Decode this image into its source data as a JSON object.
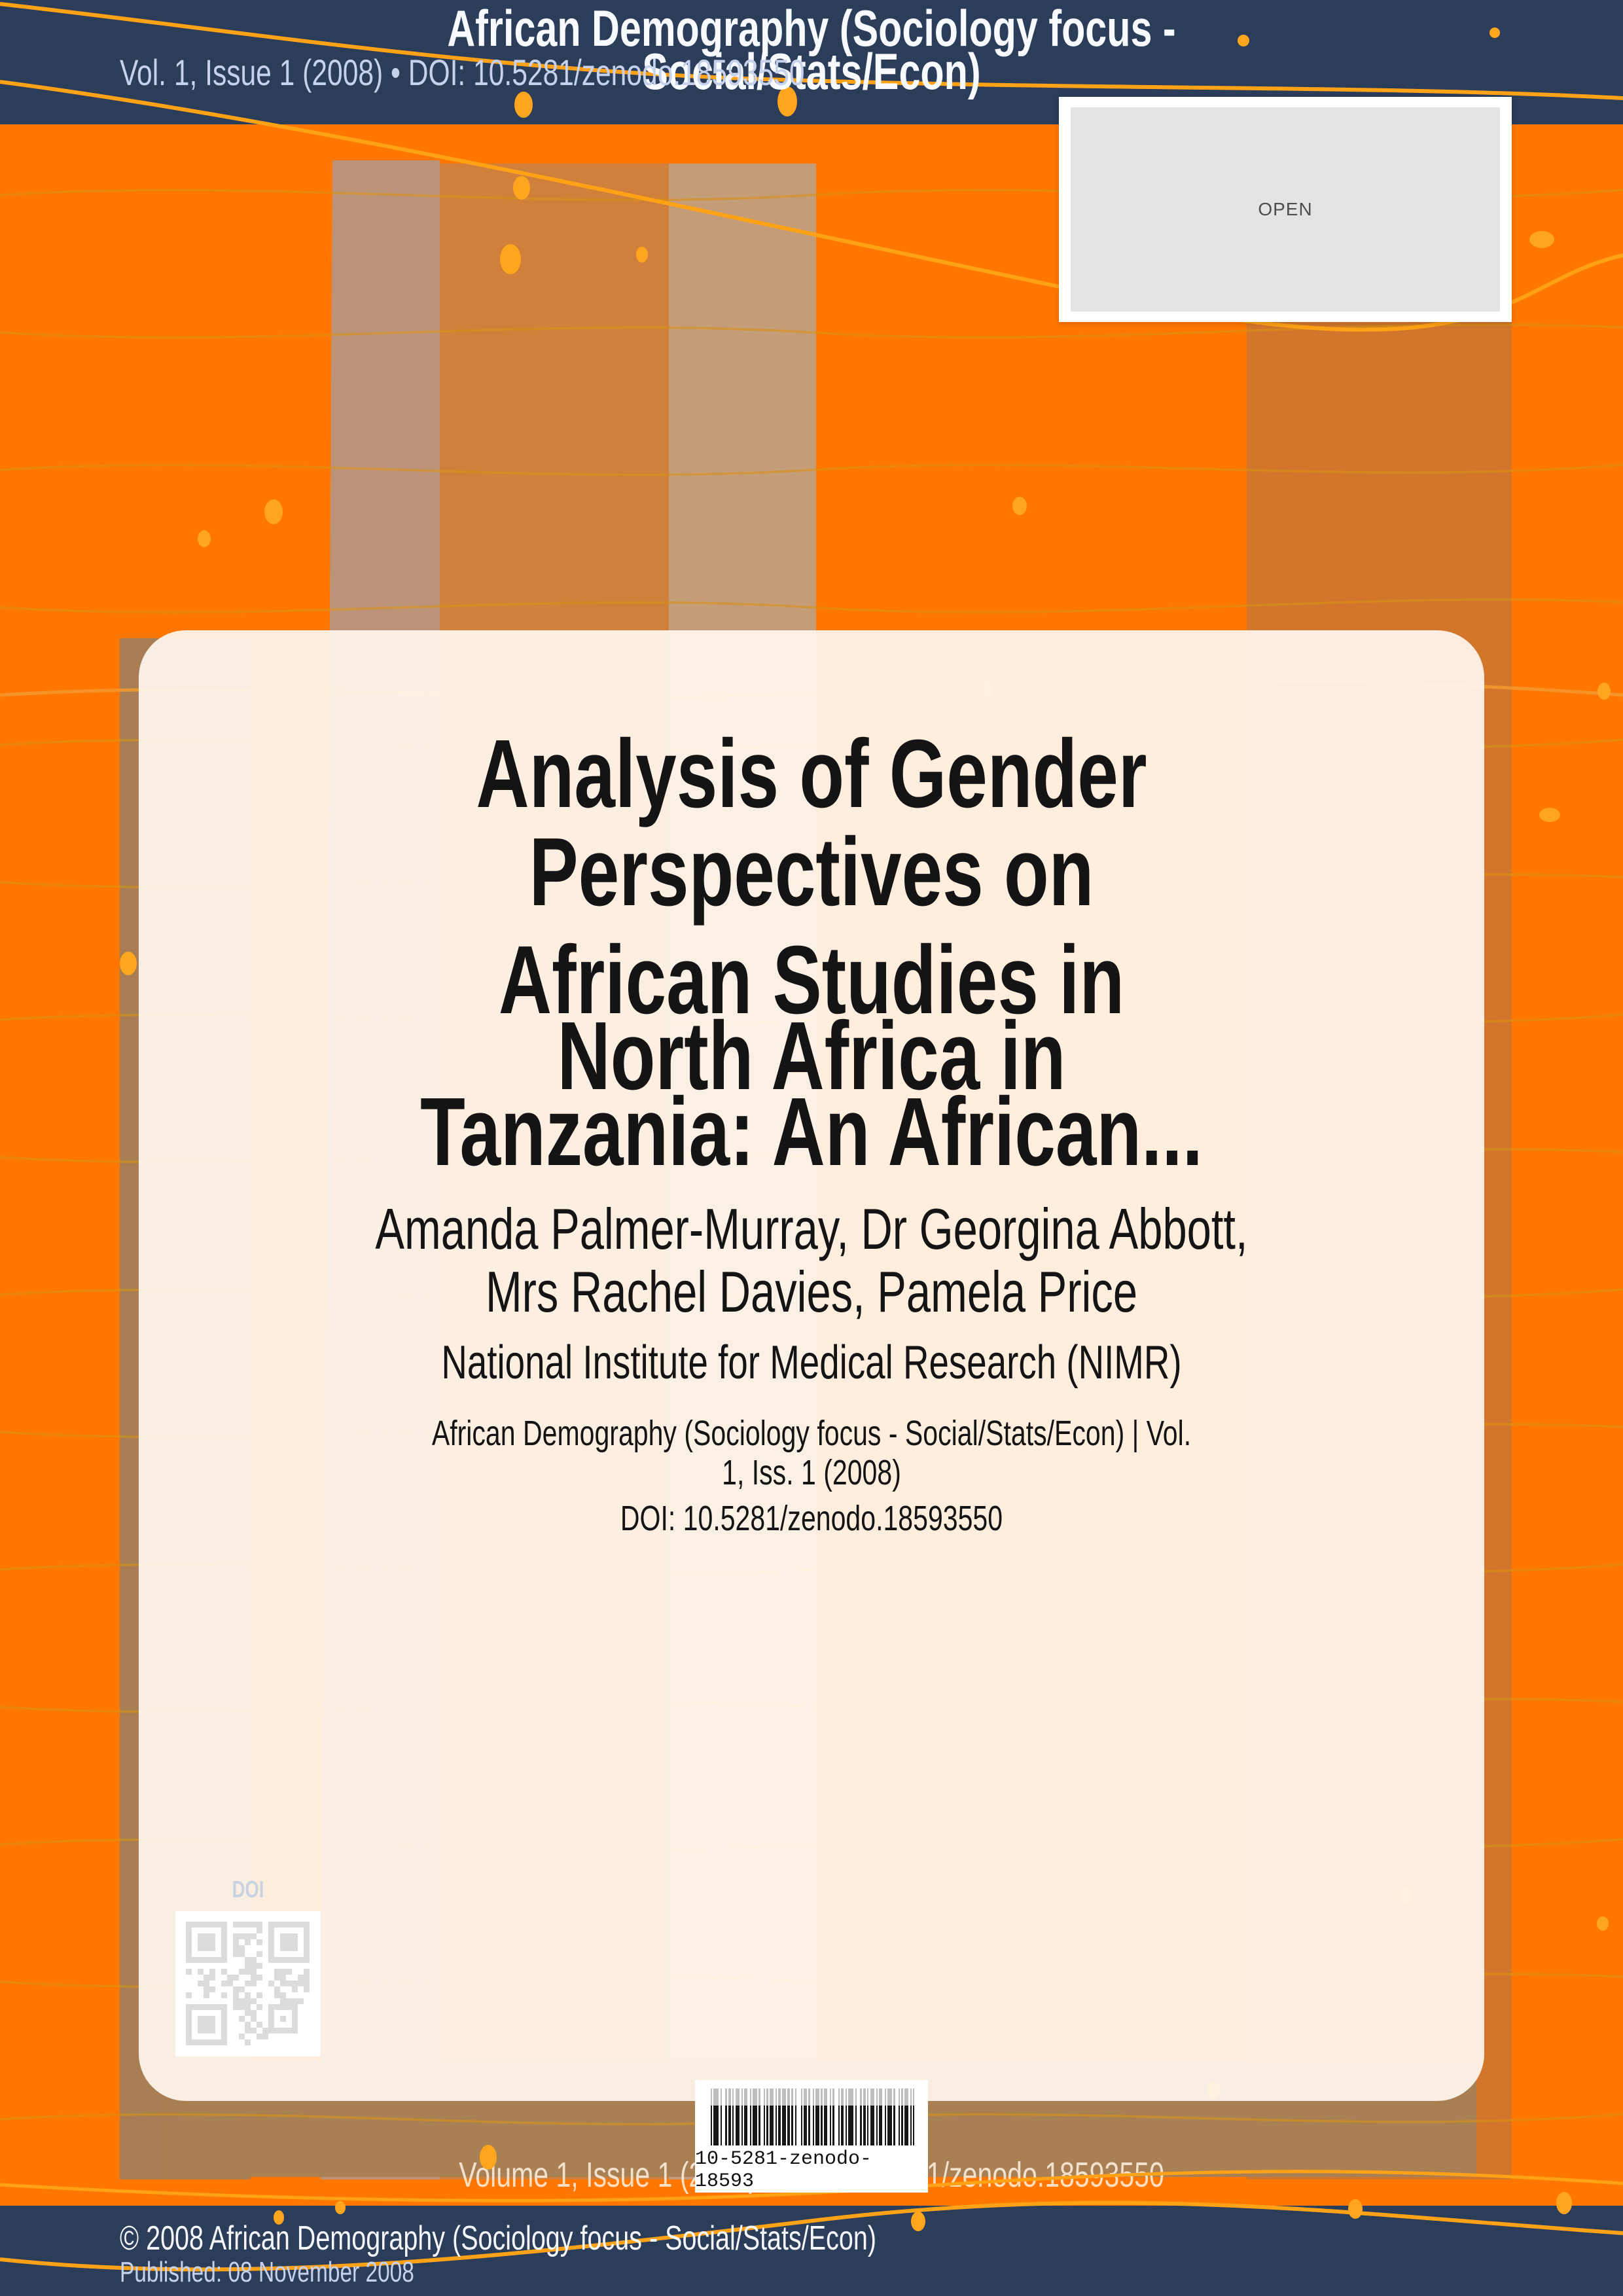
{
  "header": {
    "title_lines": [
      "African Demography (Sociology focus -",
      "Social/Stats/Econ)"
    ],
    "meta": "Vol. 1, Issue 1 (2008) • DOI: 10.5281/zenodo.18593550"
  },
  "open_badge": {
    "label": "OPEN"
  },
  "article": {
    "title_block1_lines": [
      "Analysis of Gender",
      "Perspectives on"
    ],
    "title_block2_lines": [
      "African Studies in",
      "North Africa in",
      "Tanzania: An African..."
    ],
    "author_lines": [
      "Amanda Palmer-Murray, Dr Georgina Abbott,",
      "Mrs Rachel Davies, Pamela Price"
    ],
    "affiliation": "National Institute for Medical Research (NIMR)",
    "journal_ref_lines": [
      "African Demography (Sociology focus - Social/Stats/Econ) | Vol.",
      "1, Iss. 1 (2008)"
    ],
    "doi": "DOI: 10.5281/zenodo.18593550",
    "qr_label": "DOI"
  },
  "barcode": {
    "text": "10-5281-zenodo-18593"
  },
  "bottom_strip": {
    "text": "Volume 1, Issue 1 (2008) • DOI: 10.5281/zenodo.18593550"
  },
  "footer": {
    "copyright": "© 2008 African Demography (Sociology focus - Social/Stats/Econ)",
    "published": "Published: 08 November 2008"
  },
  "colors": {
    "page_orange": "#FF7600",
    "bar_navy": "#2B3D59",
    "accent_wave": "#FFA216",
    "meta_lavender": "#C6D2EC",
    "card_bg": "rgba(255,246,238,0.93)"
  }
}
